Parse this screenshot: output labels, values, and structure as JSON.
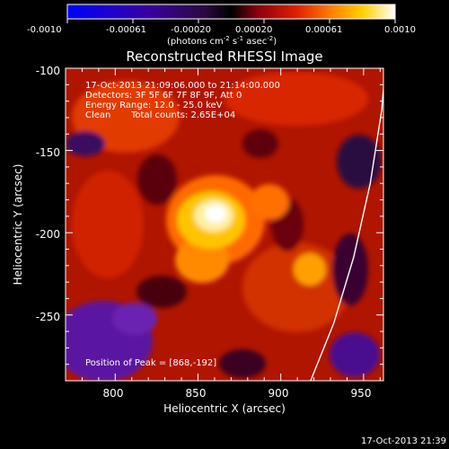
{
  "colorbar": {
    "ticks": [
      "-0.0010",
      "-0.00061",
      "-0.00020",
      "0.00020",
      "0.00061",
      "0.0010"
    ],
    "units": "(photons cm",
    "units_sup1": "-2",
    "units_mid": " s",
    "units_sup2": "-1",
    "units_end": " asec",
    "units_sup3": "-2",
    "units_close": ")",
    "colors": [
      "#0000ff",
      "#3a00a0",
      "#2a0a40",
      "#000000",
      "#8a0010",
      "#e02000",
      "#ff7a00",
      "#ffd000",
      "#ffffff"
    ]
  },
  "chart_data": {
    "type": "heatmap",
    "title": "Reconstructed RHESSI Image",
    "xlabel": "Heliocentric X (arcsec)",
    "ylabel": "Heliocentric Y (arcsec)",
    "xlim": [
      770,
      962
    ],
    "ylim": [
      -290,
      -100
    ],
    "x_ticks": [
      "800",
      "850",
      "900",
      "950"
    ],
    "y_ticks": [
      "-100",
      "-150",
      "-200",
      "-250"
    ],
    "peak": [
      868,
      -192
    ],
    "limb_arc": [
      [
        918,
        -290
      ],
      [
        932,
        -255
      ],
      [
        944,
        -215
      ],
      [
        954,
        -170
      ],
      [
        961,
        -125
      ],
      [
        963,
        -100
      ]
    ]
  },
  "annotations": {
    "line1": "17-Oct-2013 21:09:06.000 to 21:14:00.000",
    "line2": "Detectors: 3F 5F 6F 7F 8F 9F, Att 0",
    "line3": "Energy Range: 12.0 - 25.0 keV",
    "line4_a": "Clean",
    "line4_b": "Total counts: 2.65E+04",
    "peak_label": "Position of Peak = [868,-192]"
  },
  "timestamp": "17-Oct-2013 21:39"
}
